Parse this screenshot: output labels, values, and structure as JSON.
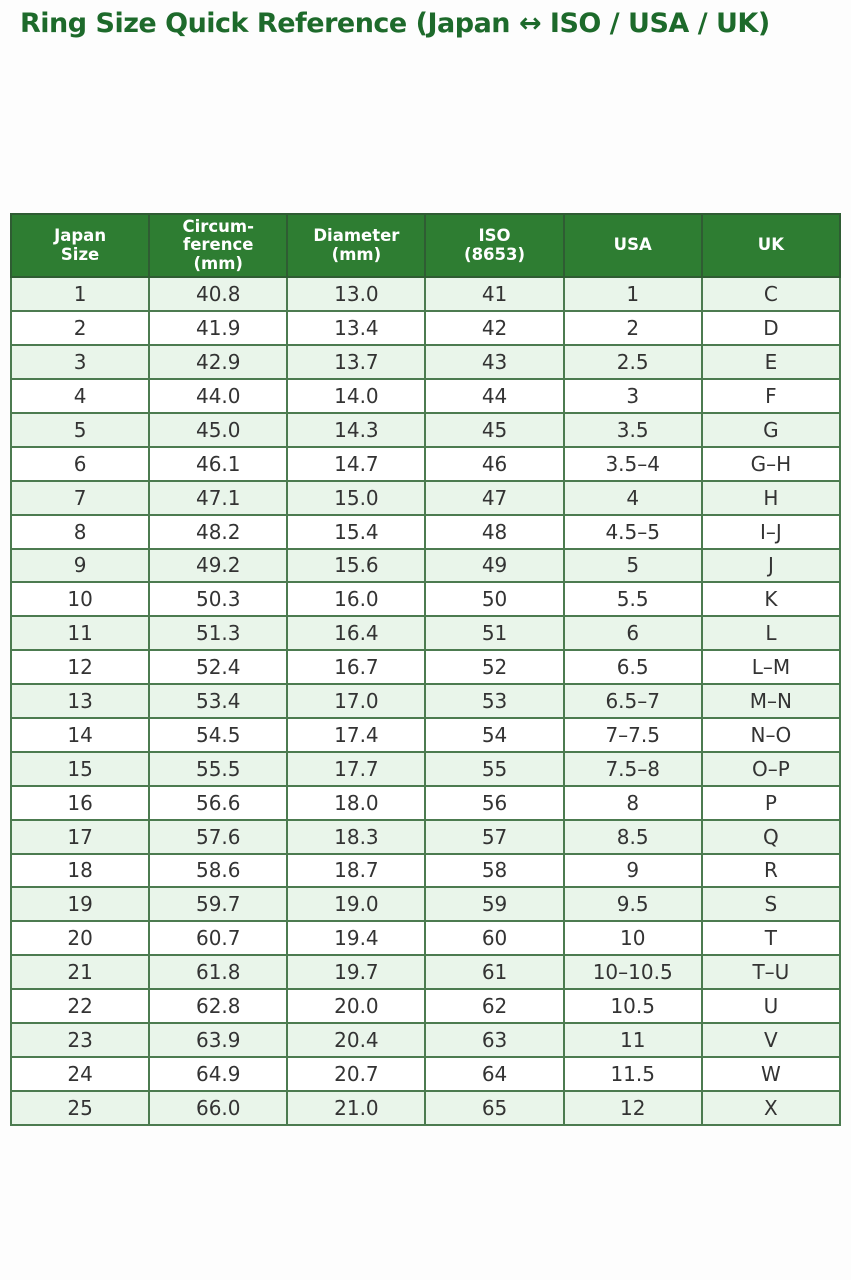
{
  "page": {
    "title": "Ring Size Quick Reference (Japan ↔ ISO / USA / UK)"
  },
  "colors": {
    "title_color": "#1d6a2b",
    "header_bg": "#2e7d32",
    "header_text": "#ffffff",
    "row_alt_bg": "#e9f5ea",
    "row_bg": "#ffffff",
    "border": "#4c7b50",
    "cell_text": "#333333",
    "page_bg": "#fdfdfd"
  },
  "table": {
    "headers": [
      "Japan\nSize",
      "Circum-\nference\n(mm)",
      "Diameter\n(mm)",
      "ISO\n(8653)",
      "USA",
      "UK"
    ],
    "rows": [
      [
        "1",
        "40.8",
        "13.0",
        "41",
        "1",
        "C"
      ],
      [
        "2",
        "41.9",
        "13.4",
        "42",
        "2",
        "D"
      ],
      [
        "3",
        "42.9",
        "13.7",
        "43",
        "2.5",
        "E"
      ],
      [
        "4",
        "44.0",
        "14.0",
        "44",
        "3",
        "F"
      ],
      [
        "5",
        "45.0",
        "14.3",
        "45",
        "3.5",
        "G"
      ],
      [
        "6",
        "46.1",
        "14.7",
        "46",
        "3.5–4",
        "G–H"
      ],
      [
        "7",
        "47.1",
        "15.0",
        "47",
        "4",
        "H"
      ],
      [
        "8",
        "48.2",
        "15.4",
        "48",
        "4.5–5",
        "I–J"
      ],
      [
        "9",
        "49.2",
        "15.6",
        "49",
        "5",
        "J"
      ],
      [
        "10",
        "50.3",
        "16.0",
        "50",
        "5.5",
        "K"
      ],
      [
        "11",
        "51.3",
        "16.4",
        "51",
        "6",
        "L"
      ],
      [
        "12",
        "52.4",
        "16.7",
        "52",
        "6.5",
        "L–M"
      ],
      [
        "13",
        "53.4",
        "17.0",
        "53",
        "6.5–7",
        "M–N"
      ],
      [
        "14",
        "54.5",
        "17.4",
        "54",
        "7–7.5",
        "N–O"
      ],
      [
        "15",
        "55.5",
        "17.7",
        "55",
        "7.5–8",
        "O–P"
      ],
      [
        "16",
        "56.6",
        "18.0",
        "56",
        "8",
        "P"
      ],
      [
        "17",
        "57.6",
        "18.3",
        "57",
        "8.5",
        "Q"
      ],
      [
        "18",
        "58.6",
        "18.7",
        "58",
        "9",
        "R"
      ],
      [
        "19",
        "59.7",
        "19.0",
        "59",
        "9.5",
        "S"
      ],
      [
        "20",
        "60.7",
        "19.4",
        "60",
        "10",
        "T"
      ],
      [
        "21",
        "61.8",
        "19.7",
        "61",
        "10–10.5",
        "T–U"
      ],
      [
        "22",
        "62.8",
        "20.0",
        "62",
        "10.5",
        "U"
      ],
      [
        "23",
        "63.9",
        "20.4",
        "63",
        "11",
        "V"
      ],
      [
        "24",
        "64.9",
        "20.7",
        "64",
        "11.5",
        "W"
      ],
      [
        "25",
        "66.0",
        "21.0",
        "65",
        "12",
        "X"
      ]
    ]
  }
}
